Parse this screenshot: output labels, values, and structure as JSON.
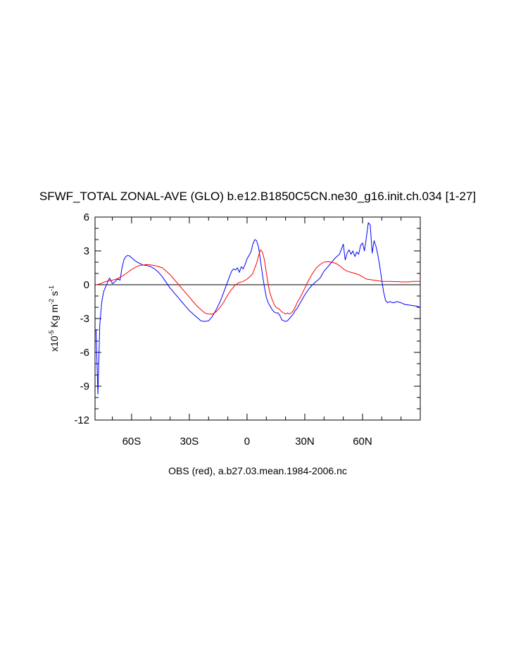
{
  "chart_data": {
    "type": "line",
    "title": "SFWF_TOTAL ZONAL-AVE (GLO) b.e12.B1850C5CN.ne30_g16.init.ch.034 [1-27]",
    "ylabel": {
      "prefix": "x10",
      "exp": "-5",
      "unit1": " Kg m",
      "exp2": "-2",
      "unit2": " s",
      "exp3": "-1"
    },
    "footer": "OBS (red), a.b27.03.mean.1984-2006.nc",
    "xlim": [
      -79,
      90
    ],
    "ylim": [
      -12,
      6
    ],
    "x_ticks": [
      {
        "value": -60,
        "label": "60S"
      },
      {
        "value": -30,
        "label": "30S"
      },
      {
        "value": 0,
        "label": "0"
      },
      {
        "value": 30,
        "label": "30N"
      },
      {
        "value": 60,
        "label": "60N"
      }
    ],
    "y_ticks": [
      {
        "value": 6,
        "label": "6"
      },
      {
        "value": 3,
        "label": "3"
      },
      {
        "value": 0,
        "label": "0"
      },
      {
        "value": -3,
        "label": "-3"
      },
      {
        "value": -6,
        "label": "-6"
      },
      {
        "value": -9,
        "label": "-9"
      },
      {
        "value": -12,
        "label": "-12"
      }
    ],
    "zero_line": true,
    "series": [
      {
        "color": "#0000ff",
        "x": [
          -78.5,
          -77.5,
          -76.5,
          -75.5,
          -74.5,
          -73.5,
          -72.5,
          -71.5,
          -70,
          -69,
          -68,
          -67,
          -66,
          -65,
          -64,
          -63,
          -62,
          -61,
          -60,
          -58,
          -56,
          -54,
          -52,
          -50,
          -48,
          -46,
          -44,
          -42,
          -40,
          -38,
          -36,
          -34,
          -32,
          -30,
          -28,
          -26,
          -24,
          -22,
          -20,
          -18,
          -16,
          -14,
          -12,
          -10,
          -9,
          -8,
          -7,
          -6,
          -5,
          -4,
          -3,
          -2,
          -1,
          0,
          1,
          2,
          3,
          4,
          5,
          6,
          7,
          8,
          9,
          10,
          11,
          12,
          13,
          14,
          15,
          16,
          17,
          18,
          19,
          20,
          21,
          22,
          23,
          24,
          25,
          26,
          27,
          28,
          30,
          32,
          34,
          36,
          38,
          40,
          42,
          44,
          46,
          48,
          50,
          51,
          52,
          53,
          54,
          55,
          56,
          57,
          58,
          59,
          60,
          61,
          62,
          63,
          64,
          65,
          66,
          67,
          68,
          69,
          70,
          71,
          72,
          73,
          74,
          76,
          78,
          80,
          82,
          84,
          86,
          88,
          90
        ],
        "y": [
          -4,
          -9.7,
          -3.5,
          -1.5,
          -0.6,
          -0.2,
          0.2,
          0.6,
          0.1,
          0.2,
          0.4,
          0.5,
          0.4,
          1.5,
          2.2,
          2.5,
          2.6,
          2.55,
          2.4,
          2.1,
          1.9,
          1.75,
          1.7,
          1.6,
          1.4,
          1.1,
          0.7,
          0.2,
          -0.3,
          -0.7,
          -1.1,
          -1.5,
          -1.9,
          -2.3,
          -2.6,
          -2.9,
          -3.2,
          -3.25,
          -3.2,
          -2.8,
          -2.2,
          -1.5,
          -0.6,
          0.3,
          0.8,
          1.2,
          1.4,
          1.3,
          1.5,
          1.1,
          1.6,
          1.4,
          1.8,
          2.3,
          2.6,
          2.9,
          3.6,
          4,
          3.9,
          3.3,
          2.1,
          0.9,
          -0.2,
          -1.1,
          -1.6,
          -1.9,
          -2.2,
          -2.4,
          -2.5,
          -2.5,
          -2.7,
          -3.1,
          -3.2,
          -3.25,
          -3.2,
          -3,
          -2.8,
          -2.6,
          -2.3,
          -2.1,
          -1.8,
          -1.5,
          -0.9,
          -0.4,
          0,
          0.3,
          0.6,
          1.2,
          1.6,
          2,
          2.4,
          2.7,
          3.6,
          2.2,
          2.8,
          3.1,
          2.7,
          3,
          2.5,
          2.9,
          2.7,
          3.5,
          3.7,
          3,
          4.2,
          5.5,
          5.3,
          2.8,
          3.9,
          3.4,
          2.6,
          1.6,
          0.4,
          -0.7,
          -1.4,
          -1.6,
          -1.5,
          -1.6,
          -1.5,
          -1.6,
          -1.75,
          -1.8,
          -1.85,
          -1.9,
          -2
        ]
      },
      {
        "color": "#ff0000",
        "x": [
          -78,
          -76,
          -74,
          -72,
          -70,
          -68,
          -66,
          -64,
          -62,
          -60,
          -58,
          -56,
          -54,
          -52,
          -50,
          -48,
          -46,
          -44,
          -42,
          -40,
          -38,
          -36,
          -34,
          -32,
          -30,
          -28,
          -26,
          -24,
          -22,
          -20,
          -18,
          -16,
          -14,
          -12,
          -10,
          -8,
          -6,
          -4,
          -2,
          0,
          2,
          3,
          4,
          5,
          6,
          7,
          8,
          9,
          10,
          11,
          12,
          13,
          14,
          15,
          16,
          17,
          18,
          19,
          20,
          21,
          22,
          23,
          24,
          25,
          26,
          27,
          28,
          30,
          32,
          34,
          36,
          38,
          40,
          42,
          44,
          46,
          48,
          50,
          52,
          54,
          56,
          58,
          60,
          62,
          64,
          66,
          68,
          70,
          72,
          74,
          76,
          78,
          80,
          82,
          84,
          86,
          88,
          90
        ],
        "y": [
          0,
          0.1,
          0.25,
          0.35,
          0.4,
          0.5,
          0.65,
          0.85,
          1.1,
          1.35,
          1.55,
          1.7,
          1.75,
          1.8,
          1.75,
          1.7,
          1.6,
          1.5,
          1.2,
          0.9,
          0.5,
          0.1,
          -0.3,
          -0.7,
          -1.1,
          -1.5,
          -1.9,
          -2.2,
          -2.5,
          -2.6,
          -2.6,
          -2.4,
          -2,
          -1.5,
          -0.9,
          -0.4,
          0,
          0.2,
          0.3,
          0.5,
          0.8,
          1,
          1.5,
          1.9,
          2.6,
          3.1,
          2.9,
          2.2,
          1.1,
          0,
          -0.8,
          -1.3,
          -1.7,
          -2,
          -2.1,
          -2.2,
          -2.4,
          -2.5,
          -2.6,
          -2.5,
          -2.6,
          -2.5,
          -2.3,
          -2,
          -1.6,
          -1.3,
          -1,
          -0.3,
          0.4,
          1,
          1.5,
          1.8,
          2,
          2.05,
          2,
          1.9,
          1.7,
          1.4,
          1.2,
          1.1,
          1,
          0.9,
          0.7,
          0.5,
          0.45,
          0.4,
          0.35,
          0.3,
          0.3,
          0.3,
          0.28,
          0.28,
          0.25,
          0.25,
          0.25,
          0.3,
          0.3,
          0.3
        ]
      }
    ]
  }
}
